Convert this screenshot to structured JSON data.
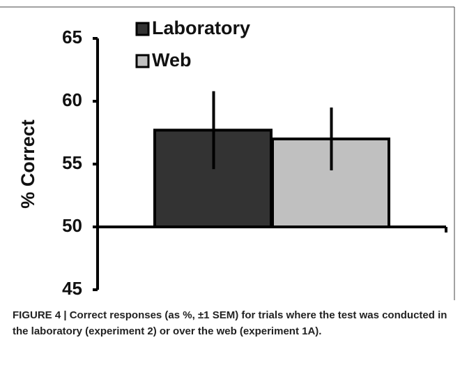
{
  "chart_data": {
    "type": "bar",
    "ylabel": "% Correct",
    "series": [
      {
        "name": "Laboratory",
        "color": "#333333",
        "values": [
          57.7
        ],
        "errors": [
          3.1
        ]
      },
      {
        "name": "Web",
        "color": "#c0c0c0",
        "values": [
          57.0
        ],
        "errors": [
          2.5
        ]
      }
    ],
    "baseline": 50,
    "ylim": [
      45,
      65
    ],
    "yticks": [
      45,
      50,
      55,
      60,
      65
    ],
    "legend": "top",
    "caption": "FIGURE 4 | Correct responses (as %, ±1 SEM) for trials where the test was conducted in the laboratory (experiment 2) or over the web (experiment 1A)."
  }
}
